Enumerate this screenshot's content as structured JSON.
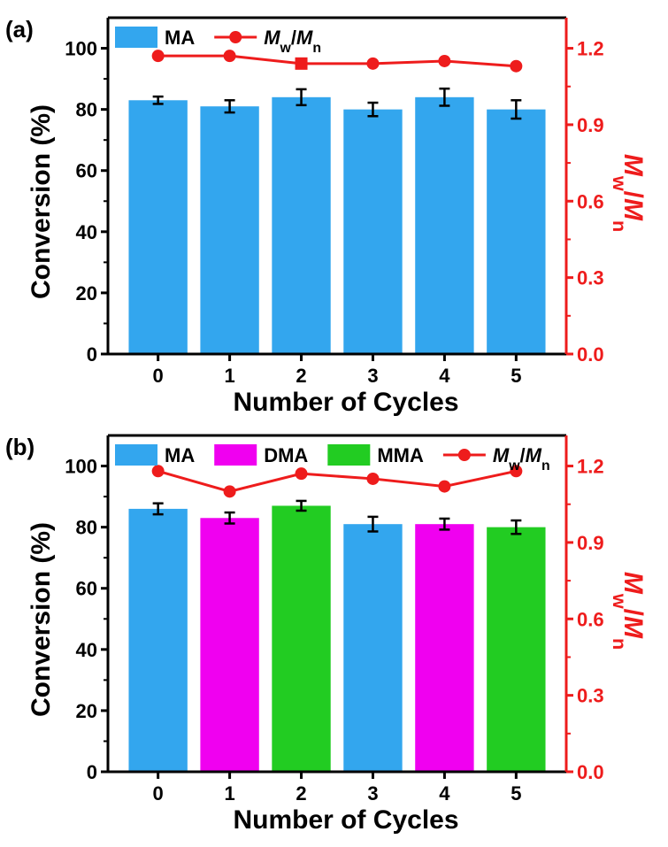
{
  "chart_data": [
    {
      "type": "bar",
      "panel_label": "(a)",
      "categories": [
        "0",
        "1",
        "2",
        "3",
        "4",
        "5"
      ],
      "xlabel": "Number of Cycles",
      "ylabel": "Conversion (%)",
      "ylim": [
        0,
        110
      ],
      "yticks": [
        "0",
        "20",
        "40",
        "60",
        "80",
        "100"
      ],
      "y2label": "Mw/Mn",
      "y2lim": [
        0,
        1.32
      ],
      "y2ticks": [
        "0.0",
        "0.3",
        "0.6",
        "0.9",
        "1.2"
      ],
      "legend_position": "top-left",
      "bar_legend": [
        {
          "name": "MA",
          "color": "#33A6EE"
        }
      ],
      "bars": [
        {
          "value": 83,
          "error": 1.2,
          "color": "#33A6EE"
        },
        {
          "value": 81,
          "error": 2.0,
          "color": "#33A6EE"
        },
        {
          "value": 84,
          "error": 2.6,
          "color": "#33A6EE"
        },
        {
          "value": 80,
          "error": 2.2,
          "color": "#33A6EE"
        },
        {
          "value": 84,
          "error": 2.8,
          "color": "#33A6EE"
        },
        {
          "value": 80,
          "error": 3.0,
          "color": "#33A6EE"
        }
      ],
      "line_series": {
        "name": "Mw/Mn",
        "color": "#EE1C1C",
        "values": [
          1.17,
          1.17,
          1.14,
          1.14,
          1.15,
          1.13
        ],
        "markers": [
          "circle",
          "circle",
          "square",
          "circle",
          "circle",
          "circle"
        ]
      }
    },
    {
      "type": "bar",
      "panel_label": "(b)",
      "categories": [
        "0",
        "1",
        "2",
        "3",
        "4",
        "5"
      ],
      "xlabel": "Number of Cycles",
      "ylabel": "Conversion (%)",
      "ylim": [
        0,
        110
      ],
      "yticks": [
        "0",
        "20",
        "40",
        "60",
        "80",
        "100"
      ],
      "y2label": "Mw/Mn",
      "y2lim": [
        0,
        1.32
      ],
      "y2ticks": [
        "0.0",
        "0.3",
        "0.6",
        "0.9",
        "1.2"
      ],
      "legend_position": "top-left",
      "bar_legend": [
        {
          "name": "MA",
          "color": "#33A6EE"
        },
        {
          "name": "DMA",
          "color": "#F000F0"
        },
        {
          "name": "MMA",
          "color": "#22CC22"
        }
      ],
      "bars": [
        {
          "value": 86,
          "error": 1.8,
          "color": "#33A6EE"
        },
        {
          "value": 83,
          "error": 1.8,
          "color": "#F000F0"
        },
        {
          "value": 87,
          "error": 1.6,
          "color": "#22CC22"
        },
        {
          "value": 81,
          "error": 2.4,
          "color": "#33A6EE"
        },
        {
          "value": 81,
          "error": 1.8,
          "color": "#F000F0"
        },
        {
          "value": 80,
          "error": 2.2,
          "color": "#22CC22"
        }
      ],
      "line_series": {
        "name": "Mw/Mn",
        "color": "#EE1C1C",
        "values": [
          1.18,
          1.1,
          1.17,
          1.15,
          1.12,
          1.18
        ],
        "markers": [
          "circle",
          "circle",
          "circle",
          "circle",
          "circle",
          "circle"
        ]
      }
    }
  ]
}
